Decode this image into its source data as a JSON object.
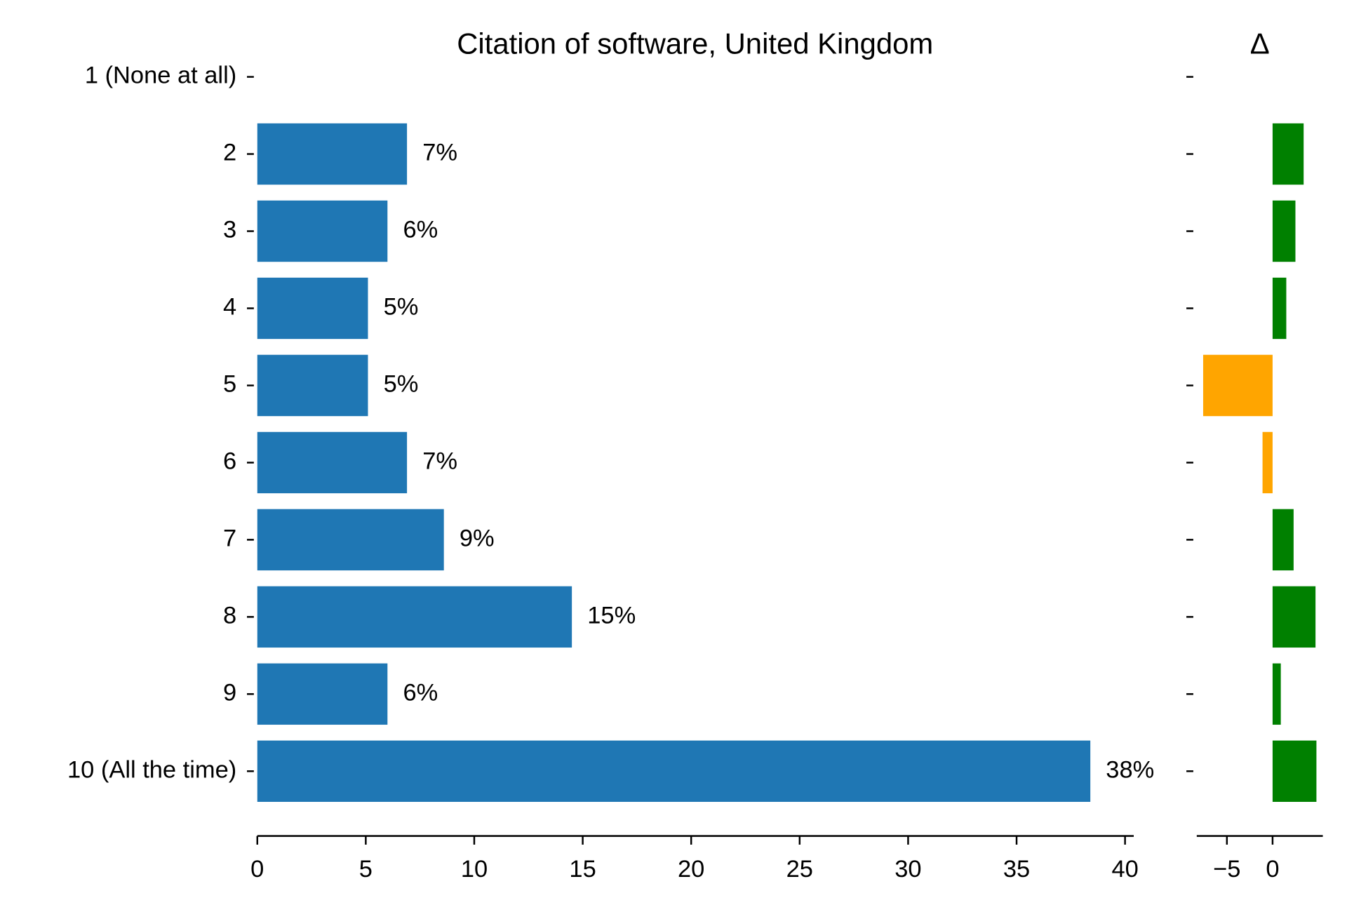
{
  "chart_data": [
    {
      "type": "hbar",
      "title": "Citation of software, United Kingdom",
      "categories": [
        "1 (None at all)",
        "2",
        "3",
        "4",
        "5",
        "6",
        "7",
        "8",
        "9",
        "10 (All the time)"
      ],
      "values": [
        null,
        6.9,
        6.0,
        5.1,
        5.1,
        6.9,
        8.6,
        14.5,
        6.0,
        38.4
      ],
      "value_labels": [
        null,
        "7%",
        "6%",
        "5%",
        "5%",
        "7%",
        "9%",
        "15%",
        "6%",
        "38%"
      ],
      "color": "#1f77b4",
      "xlim": [
        0,
        40.4
      ],
      "xticks": [
        0,
        5,
        10,
        15,
        20,
        25,
        30,
        35,
        40
      ]
    },
    {
      "type": "delta",
      "title": "Δ",
      "values": [
        null,
        3.4,
        2.5,
        1.5,
        -7.6,
        -1.1,
        2.3,
        4.7,
        0.9,
        4.8
      ],
      "positive_color": "#008000",
      "negative_color": "#ffa500",
      "xlim": [
        -8.3,
        5.5
      ],
      "xticks": [
        {
          "value": -5,
          "label": "−5"
        },
        0
      ]
    }
  ]
}
